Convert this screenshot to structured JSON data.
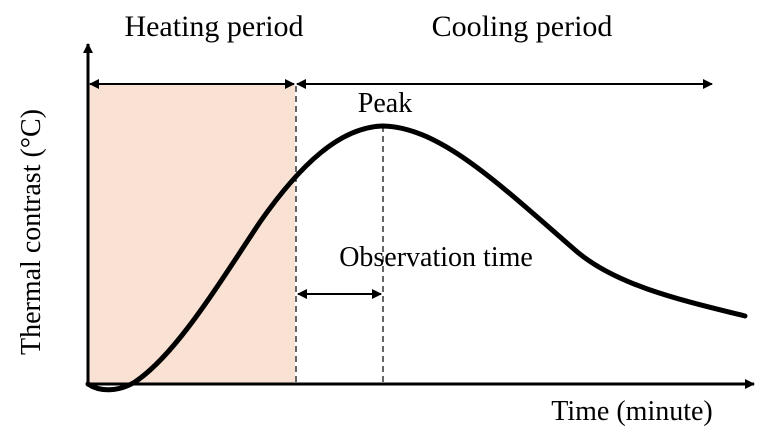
{
  "labels": {
    "heating_period": "Heating period",
    "cooling_period": "Cooling period",
    "peak": "Peak",
    "observation_time": "Observation time",
    "x_axis": "Time (minute)",
    "y_axis": "Thermal contrast (°C)"
  },
  "colors": {
    "heating_region": "#f9e1d4",
    "ink": "#000000"
  }
}
